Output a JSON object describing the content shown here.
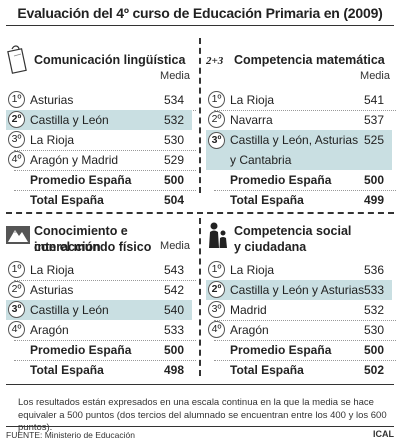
{
  "title": "Evaluación del 4º curso de Educación Primaria en (2009)",
  "media_label": "Media",
  "panels": {
    "linguistica": {
      "title": "Comunicación lingüística",
      "rows": [
        {
          "rank": "1º",
          "name": "Asturias",
          "value": "534"
        },
        {
          "rank": "2º",
          "name": "Castilla y León",
          "value": "532"
        },
        {
          "rank": "3º",
          "name": "La Rioja",
          "value": "530"
        },
        {
          "rank": "4º",
          "name": "Aragón y Madrid",
          "value": "529"
        }
      ],
      "promedio": {
        "label": "Promedio España",
        "value": "500"
      },
      "total": {
        "label": "Total España",
        "value": "504"
      }
    },
    "matematica": {
      "title": "Competencia matemática",
      "icon_text": "2+3",
      "rows": [
        {
          "rank": "1º",
          "name": "La Rioja",
          "value": "541"
        },
        {
          "rank": "2º",
          "name": "Navarra",
          "value": "537"
        },
        {
          "rank": "3º",
          "name": "Castilla y León, Asturias",
          "name2": "y Cantabria",
          "value": "525"
        }
      ],
      "promedio": {
        "label": "Promedio España",
        "value": "500"
      },
      "total": {
        "label": "Total España",
        "value": "499"
      }
    },
    "conocimiento": {
      "title_line1": "Conocimiento e interacción",
      "title_line2": "con el mundo físico",
      "rows": [
        {
          "rank": "1º",
          "name": "La Rioja",
          "value": "543"
        },
        {
          "rank": "2º",
          "name": "Asturias",
          "value": "542"
        },
        {
          "rank": "3º",
          "name": "Castilla y León",
          "value": "540"
        },
        {
          "rank": "4º",
          "name": "Aragón",
          "value": "533"
        }
      ],
      "promedio": {
        "label": "Promedio España",
        "value": "500"
      },
      "total": {
        "label": "Total España",
        "value": "498"
      }
    },
    "social": {
      "title_line1": "Competencia social",
      "title_line2": "y ciudadana",
      "rows": [
        {
          "rank": "1º",
          "name": "La Rioja",
          "value": "536"
        },
        {
          "rank": "2º",
          "name": "Castilla y León y Asturias",
          "value": "533"
        },
        {
          "rank": "3º",
          "name": "Madrid",
          "value": "532"
        },
        {
          "rank": "4º",
          "name": "Aragón",
          "value": "530"
        }
      ],
      "promedio": {
        "label": "Promedio España",
        "value": "500"
      },
      "total": {
        "label": "Total España",
        "value": "502"
      }
    }
  },
  "note": "Los resultados están expresados en una escala continua en la que la media se hace equivaler a 500 puntos (dos tercios del alumnado se encuentran entre los 400 y los 600 puntos).",
  "source": "FUENTE: Ministerio de Educación",
  "brand": "ICAL",
  "colors": {
    "highlight": "#c9dfe2",
    "text": "#222222"
  }
}
